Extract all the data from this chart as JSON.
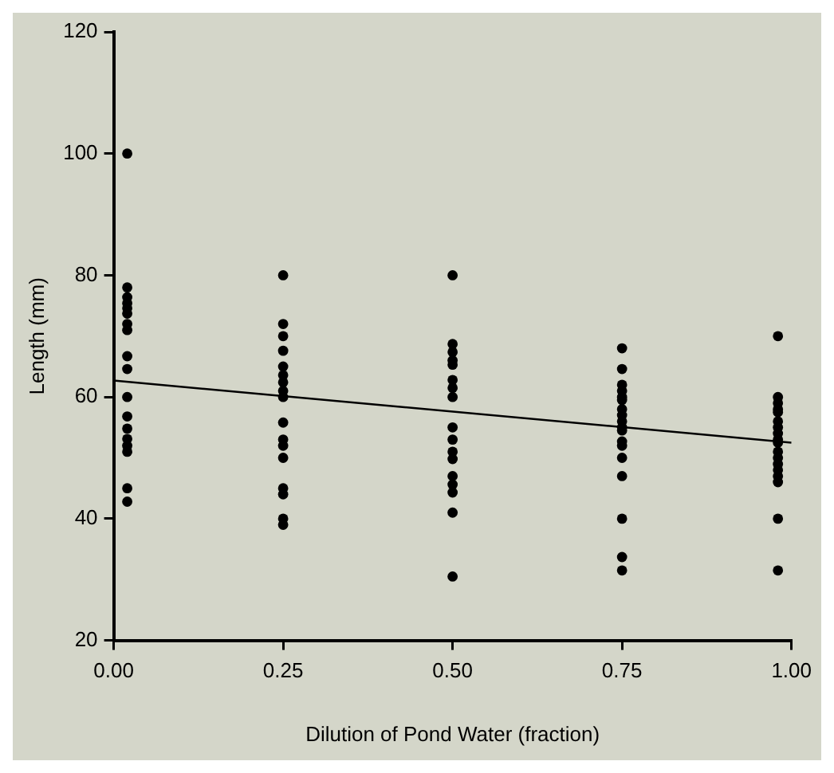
{
  "chart_data": {
    "type": "scatter",
    "xlabel": "Dilution of Pond Water (fraction)",
    "ylabel": "Length (mm)",
    "xlim": [
      0,
      1
    ],
    "xticks": [
      {
        "value": 0,
        "label": "0.00"
      },
      {
        "value": 0.25,
        "label": "0.25"
      },
      {
        "value": 0.5,
        "label": "0.50"
      },
      {
        "value": 0.75,
        "label": "0.75"
      },
      {
        "value": 1,
        "label": "1.00"
      }
    ],
    "ylim": [
      20,
      120
    ],
    "yticks": [
      20,
      40,
      60,
      80,
      100,
      120
    ],
    "grid": false,
    "legend": false,
    "marker": "circle",
    "series": [
      {
        "type": "scatter",
        "color": "#000000",
        "x": [
          0.02,
          0.02,
          0.02,
          0.02,
          0.02,
          0.02,
          0.02,
          0.02,
          0.02,
          0.02,
          0.02,
          0.02,
          0.02,
          0.02,
          0.02,
          0.02,
          0.02,
          0.02,
          0.25,
          0.25,
          0.25,
          0.25,
          0.25,
          0.25,
          0.25,
          0.25,
          0.25,
          0.25,
          0.25,
          0.25,
          0.25,
          0.25,
          0.25,
          0.25,
          0.25,
          0.5,
          0.5,
          0.5,
          0.5,
          0.5,
          0.5,
          0.5,
          0.5,
          0.5,
          0.5,
          0.5,
          0.5,
          0.5,
          0.5,
          0.5,
          0.5,
          0.5,
          0.75,
          0.75,
          0.75,
          0.75,
          0.75,
          0.75,
          0.75,
          0.75,
          0.75,
          0.75,
          0.75,
          0.75,
          0.75,
          0.75,
          0.75,
          0.75,
          0.75,
          0.75,
          0.98,
          0.98,
          0.98,
          0.98,
          0.98,
          0.98,
          0.98,
          0.98,
          0.98,
          0.98,
          0.98,
          0.98,
          0.98,
          0.98,
          0.98,
          0.98,
          0.98,
          0.98
        ],
        "values": [
          100,
          78,
          76.4,
          75.4,
          74.6,
          73.7,
          72,
          71,
          66.7,
          64.6,
          60,
          56.8,
          54.8,
          53.1,
          52,
          51,
          45,
          42.8,
          80,
          72,
          70,
          67.6,
          65,
          63.6,
          62.4,
          61,
          60,
          55.8,
          53,
          52,
          50,
          45,
          44,
          40,
          39,
          80,
          68.7,
          67.4,
          66,
          65.3,
          62.8,
          61.5,
          60,
          55,
          53,
          51,
          49.8,
          47,
          45.6,
          44.3,
          41,
          30.5,
          68,
          64.6,
          62,
          61,
          60,
          59.5,
          58,
          57,
          56,
          55,
          54.5,
          52.7,
          52,
          50,
          47,
          40,
          33.7,
          31.5,
          70,
          60,
          59,
          58,
          57.5,
          56,
          55,
          54,
          53,
          52.5,
          51,
          50,
          49,
          48,
          47,
          46,
          40,
          31.5
        ]
      },
      {
        "type": "line",
        "color": "#000000",
        "x": [
          0,
          1
        ],
        "values": [
          62.7,
          52.5
        ],
        "marker": "none",
        "line_style": "solid"
      }
    ]
  }
}
